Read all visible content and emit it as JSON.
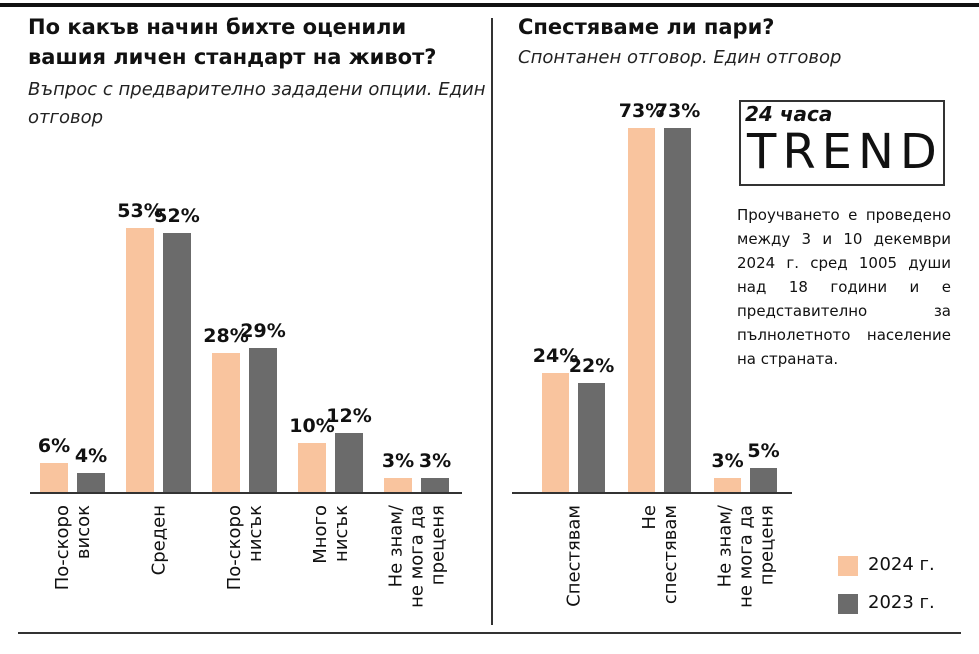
{
  "chart_data": [
    {
      "type": "bar",
      "title": "По какъв начин бихте оценили вашия личен стандарт на живот?",
      "subtitle": "Въпрос с предварително зададени опции. Един отговор",
      "categories": [
        "По-скоро висок",
        "Среден",
        "По-скоро нисък",
        "Много нисък",
        "Не знам/ не мога да преценя"
      ],
      "series": [
        {
          "color": "#f9c49e",
          "values": [
            6,
            53,
            28,
            10,
            3
          ],
          "value_labels": [
            "6%",
            "53%",
            "28%",
            "10%",
            "3%"
          ]
        },
        {
          "color": "#6b6b6b",
          "values": [
            4,
            52,
            29,
            12,
            3
          ],
          "value_labels": [
            "4%",
            "52%",
            "29%",
            "12%",
            "3%"
          ]
        }
      ],
      "ylim": [
        0,
        75
      ]
    },
    {
      "type": "bar",
      "title": "Спестяваме ли пари?",
      "subtitle": "Спонтанен отговор. Един отговор",
      "categories": [
        "Спестявам",
        "Не спестявам",
        "Не знам/ не мога да преценя"
      ],
      "series": [
        {
          "name": "2024 г.",
          "color": "#f9c49e",
          "values": [
            24,
            73,
            3
          ],
          "value_labels": [
            "24%",
            "73%",
            "3%"
          ]
        },
        {
          "name": "2023 г.",
          "color": "#6b6b6b",
          "values": [
            22,
            73,
            5
          ],
          "value_labels": [
            "22%",
            "73%",
            "5%"
          ]
        }
      ],
      "ylim": [
        0,
        75
      ],
      "legend": "lower right"
    }
  ],
  "logo": {
    "top": "24 часа",
    "main": "TREND"
  },
  "note": "Проучването е проведено между 3 и 10 декември 2024 г. сред 1005 души над 18 години и е представително за пълнолетното население на страната."
}
